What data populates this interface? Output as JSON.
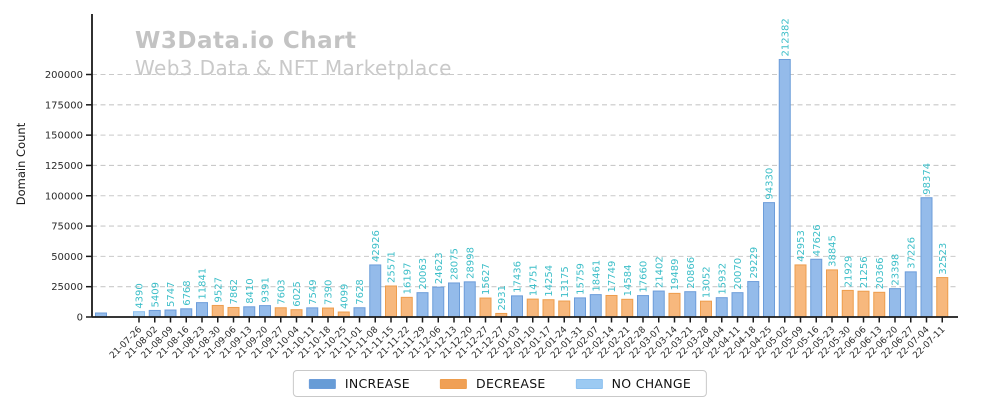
{
  "title": "W3Data.io Chart",
  "subtitle": "Web3 Data & NFT Marketplace",
  "ylabel": "Domain Count",
  "legend": [
    {
      "label": "INCREASE",
      "type": "increase"
    },
    {
      "label": "DECREASE",
      "type": "decrease"
    },
    {
      "label": "NO CHANGE",
      "type": "nochange"
    }
  ],
  "colors": {
    "increase": {
      "fill": "#94BBEA",
      "edge": "#6C9DDA",
      "swatch": "#679CD6"
    },
    "decrease": {
      "fill": "#F7B87D",
      "edge": "#EE9D4D",
      "swatch": "#F0A055"
    },
    "nochange": {
      "fill": "#AFD4F5",
      "edge": "#8CC0EF",
      "swatch": "#9CCAF2"
    },
    "value_label": "#3CBEC8",
    "grid": "#c9c9c9",
    "axis": "#1a1a1a",
    "tick_text": "#2b2b2b",
    "title_text": "#c3c3c3",
    "subtitle_text": "#c9c9c9"
  },
  "yticks": [
    0,
    25000,
    50000,
    75000,
    100000,
    125000,
    150000,
    175000,
    200000
  ],
  "chart_data": {
    "type": "bar",
    "title": "W3Data.io Chart",
    "subtitle": "Web3 Data & NFT Marketplace",
    "xlabel": "",
    "ylabel": "Domain Count",
    "ylim": [
      0,
      220000
    ],
    "grid": "horizontal-dashed",
    "legend_position": "bottom-center",
    "value_labels": "rotated-90-teal",
    "leading_unlabeled_bar": {
      "value": 3300,
      "type": "increase"
    },
    "bars": [
      {
        "date": "21-07-26",
        "value": 4390,
        "type": "nochange"
      },
      {
        "date": "21-08-02",
        "value": 5409,
        "type": "increase"
      },
      {
        "date": "21-08-09",
        "value": 5747,
        "type": "increase"
      },
      {
        "date": "21-08-16",
        "value": 6768,
        "type": "increase"
      },
      {
        "date": "21-08-23",
        "value": 11841,
        "type": "increase"
      },
      {
        "date": "21-08-30",
        "value": 9527,
        "type": "decrease"
      },
      {
        "date": "21-09-06",
        "value": 7862,
        "type": "decrease"
      },
      {
        "date": "21-09-13",
        "value": 8410,
        "type": "increase"
      },
      {
        "date": "21-09-20",
        "value": 9391,
        "type": "increase"
      },
      {
        "date": "21-09-27",
        "value": 7603,
        "type": "decrease"
      },
      {
        "date": "21-10-04",
        "value": 6025,
        "type": "decrease"
      },
      {
        "date": "21-10-11",
        "value": 7549,
        "type": "increase"
      },
      {
        "date": "21-10-18",
        "value": 7390,
        "type": "decrease"
      },
      {
        "date": "21-10-25",
        "value": 4099,
        "type": "decrease"
      },
      {
        "date": "21-11-01",
        "value": 7628,
        "type": "increase"
      },
      {
        "date": "21-11-08",
        "value": 42926,
        "type": "increase"
      },
      {
        "date": "21-11-15",
        "value": 25571,
        "type": "decrease"
      },
      {
        "date": "21-11-22",
        "value": 16197,
        "type": "decrease"
      },
      {
        "date": "21-11-29",
        "value": 20063,
        "type": "increase"
      },
      {
        "date": "21-12-06",
        "value": 24623,
        "type": "increase"
      },
      {
        "date": "21-12-13",
        "value": 28075,
        "type": "increase"
      },
      {
        "date": "21-12-20",
        "value": 28998,
        "type": "increase"
      },
      {
        "date": "21-12-27",
        "value": 15627,
        "type": "decrease"
      },
      {
        "date": "21-12-27",
        "value": 2931,
        "type": "decrease"
      },
      {
        "date": "22-01-03",
        "value": 17436,
        "type": "increase"
      },
      {
        "date": "22-01-10",
        "value": 14751,
        "type": "decrease"
      },
      {
        "date": "22-01-17",
        "value": 14254,
        "type": "decrease"
      },
      {
        "date": "22-01-24",
        "value": 13175,
        "type": "decrease"
      },
      {
        "date": "22-01-31",
        "value": 15759,
        "type": "increase"
      },
      {
        "date": "22-02-07",
        "value": 18461,
        "type": "increase"
      },
      {
        "date": "22-02-14",
        "value": 17749,
        "type": "decrease"
      },
      {
        "date": "22-02-21",
        "value": 14584,
        "type": "decrease"
      },
      {
        "date": "22-02-28",
        "value": 17660,
        "type": "increase"
      },
      {
        "date": "22-03-07",
        "value": 21402,
        "type": "increase"
      },
      {
        "date": "22-03-14",
        "value": 19489,
        "type": "decrease"
      },
      {
        "date": "22-03-21",
        "value": 20866,
        "type": "increase"
      },
      {
        "date": "22-03-28",
        "value": 13052,
        "type": "decrease"
      },
      {
        "date": "22-04-04",
        "value": 15932,
        "type": "increase"
      },
      {
        "date": "22-04-11",
        "value": 20070,
        "type": "increase"
      },
      {
        "date": "22-04-18",
        "value": 29229,
        "type": "increase"
      },
      {
        "date": "22-04-25",
        "value": 94330,
        "type": "increase"
      },
      {
        "date": "22-05-02",
        "value": 212382,
        "type": "increase"
      },
      {
        "date": "22-05-09",
        "value": 42953,
        "type": "decrease"
      },
      {
        "date": "22-05-16",
        "value": 47626,
        "type": "increase"
      },
      {
        "date": "22-05-23",
        "value": 38845,
        "type": "decrease"
      },
      {
        "date": "22-05-30",
        "value": 21929,
        "type": "decrease"
      },
      {
        "date": "22-06-06",
        "value": 21256,
        "type": "decrease"
      },
      {
        "date": "22-06-13",
        "value": 20366,
        "type": "decrease"
      },
      {
        "date": "22-06-20",
        "value": 23398,
        "type": "increase"
      },
      {
        "date": "22-06-27",
        "value": 37226,
        "type": "increase"
      },
      {
        "date": "22-07-04",
        "value": 98374,
        "type": "increase"
      },
      {
        "date": "22-07-11",
        "value": 32523,
        "type": "decrease"
      }
    ]
  }
}
